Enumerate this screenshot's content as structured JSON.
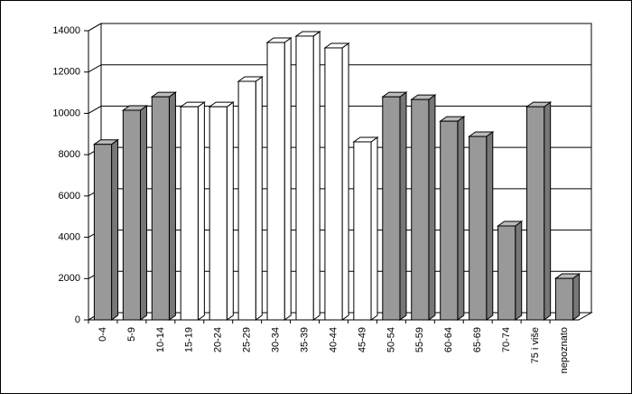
{
  "chart_data": {
    "type": "bar3d",
    "categories": [
      "0-4",
      "5-9",
      "10-14",
      "15-19",
      "20-24",
      "25-29",
      "30-34",
      "35-39",
      "40-44",
      "45-49",
      "50-54",
      "55-59",
      "60-64",
      "65-69",
      "70-74",
      "75 i više",
      "nepoznato"
    ],
    "values": [
      8500,
      10150,
      10800,
      10320,
      10320,
      11550,
      13430,
      13740,
      13170,
      8620,
      10800,
      10670,
      9620,
      8880,
      4550,
      10320,
      2010
    ],
    "colors": [
      "#999999",
      "#999999",
      "#999999",
      "#ffffff",
      "#ffffff",
      "#ffffff",
      "#ffffff",
      "#ffffff",
      "#ffffff",
      "#ffffff",
      "#999999",
      "#999999",
      "#999999",
      "#999999",
      "#999999",
      "#999999",
      "#999999"
    ],
    "ylim": [
      0,
      14000
    ],
    "yticks": [
      0,
      2000,
      4000,
      6000,
      8000,
      10000,
      12000,
      14000
    ],
    "grid": true
  }
}
